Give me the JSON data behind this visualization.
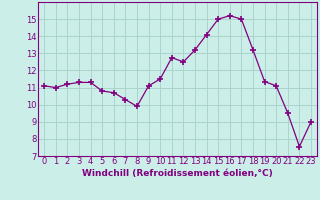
{
  "x": [
    0,
    1,
    2,
    3,
    4,
    5,
    6,
    7,
    8,
    9,
    10,
    11,
    12,
    13,
    14,
    15,
    16,
    17,
    18,
    19,
    20,
    21,
    22,
    23
  ],
  "y": [
    11.1,
    11.0,
    11.2,
    11.3,
    11.3,
    10.8,
    10.7,
    10.3,
    9.9,
    11.1,
    11.5,
    12.75,
    12.5,
    13.2,
    14.1,
    15.0,
    15.2,
    15.0,
    13.2,
    11.35,
    11.1,
    9.5,
    7.55,
    9.0
  ],
  "line_color": "#800080",
  "marker": "+",
  "marker_size": 5,
  "marker_lw": 1.2,
  "bg_color": "#cceee8",
  "grid_color": "#aad4cc",
  "xlabel": "Windchill (Refroidissement éolien,°C)",
  "xlabel_fontsize": 6.5,
  "tick_fontsize": 6.0,
  "ylim": [
    7,
    16
  ],
  "yticks": [
    7,
    8,
    9,
    10,
    11,
    12,
    13,
    14,
    15
  ],
  "xlim": [
    -0.5,
    23.5
  ],
  "xticks": [
    0,
    1,
    2,
    3,
    4,
    5,
    6,
    7,
    8,
    9,
    10,
    11,
    12,
    13,
    14,
    15,
    16,
    17,
    18,
    19,
    20,
    21,
    22,
    23
  ]
}
